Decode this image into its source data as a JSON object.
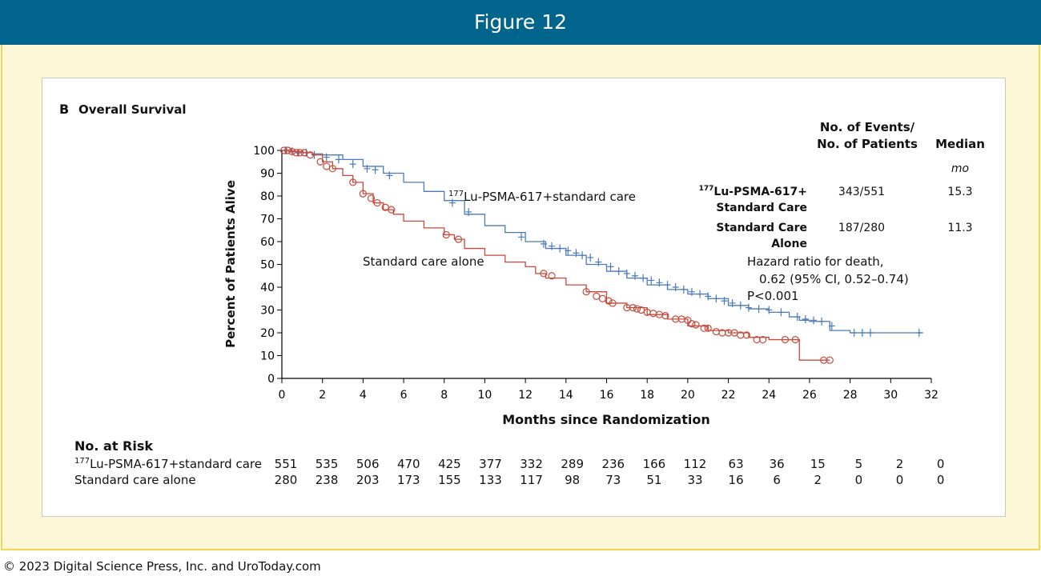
{
  "figure_title": "Figure 12",
  "footer": "© 2023 Digital Science Press, Inc. and UroToday.com",
  "panel": {
    "letter": "B",
    "title": "Overall Survival"
  },
  "events_table": {
    "header_events_line1": "No. of Events/",
    "header_events_line2": "No. of Patients",
    "header_median": "Median",
    "median_unit": "mo",
    "rows": [
      {
        "name_sup": "177",
        "name_line1": "Lu-PSMA-617+",
        "name_line2": "Standard Care",
        "events": "343/551",
        "median": "15.3"
      },
      {
        "name_sup": "",
        "name_line1": "Standard Care",
        "name_line2": "Alone",
        "events": "187/280",
        "median": "11.3"
      }
    ],
    "hr_line1": "Hazard ratio for death,",
    "hr_line2": "0.62 (95% CI, 0.52–0.74)",
    "hr_line3": "P<0.001"
  },
  "at_risk": {
    "title": "No. at Risk",
    "rows": [
      {
        "sup": "177",
        "label": "Lu-PSMA-617+standard care",
        "values": [
          "551",
          "535",
          "506",
          "470",
          "425",
          "377",
          "332",
          "289",
          "236",
          "166",
          "112",
          "63",
          "36",
          "15",
          "5",
          "2",
          "0"
        ]
      },
      {
        "sup": "",
        "label": "Standard care alone",
        "values": [
          "280",
          "238",
          "203",
          "173",
          "155",
          "133",
          "117",
          "98",
          "73",
          "51",
          "33",
          "16",
          "6",
          "2",
          "0",
          "0",
          "0"
        ]
      }
    ]
  },
  "chart_data": {
    "type": "line",
    "title": "Overall Survival",
    "xlabel": "Months since Randomization",
    "ylabel": "Percent of Patients Alive",
    "xlim": [
      0,
      32
    ],
    "ylim": [
      0,
      100
    ],
    "xticks": [
      0,
      2,
      4,
      6,
      8,
      10,
      12,
      14,
      16,
      18,
      20,
      22,
      24,
      26,
      28,
      30,
      32
    ],
    "yticks": [
      0,
      10,
      20,
      30,
      40,
      50,
      60,
      70,
      80,
      90,
      100
    ],
    "series": [
      {
        "name": "177Lu-PSMA-617+standard care",
        "label_sup": "177",
        "label_text": "Lu-PSMA-617+standard care",
        "color": "#4a7ab8",
        "censor": "plus",
        "x": [
          0,
          0.5,
          1,
          1.5,
          2,
          3,
          4,
          5,
          6,
          7,
          8,
          9,
          10,
          11,
          12,
          13,
          14,
          15,
          16,
          17,
          18,
          19,
          20,
          21,
          22,
          23,
          24,
          25,
          25.5,
          26,
          27,
          28,
          29,
          30,
          31,
          31.6
        ],
        "y": [
          100,
          99.5,
          99,
          98.5,
          98,
          96,
          93,
          90,
          86,
          82,
          78,
          72,
          67,
          64,
          60,
          57,
          54,
          50,
          47,
          44,
          41,
          39,
          37,
          35,
          32,
          30.5,
          29,
          27,
          25.5,
          25,
          21,
          20,
          20,
          20,
          20,
          20
        ],
        "censored": {
          "x": [
            0.2,
            0.5,
            0.8,
            1.2,
            1.6,
            2.2,
            2.8,
            3.5,
            4.2,
            4.6,
            5.3,
            8.4,
            9.2,
            11.8,
            12.9,
            13.3,
            13.7,
            14.1,
            14.5,
            14.8,
            15.2,
            15.6,
            16.2,
            16.6,
            17.0,
            17.4,
            17.8,
            18.2,
            18.6,
            19.0,
            19.4,
            19.8,
            20.2,
            20.6,
            21.0,
            21.4,
            21.8,
            22.2,
            22.6,
            23.0,
            23.5,
            24.0,
            24.6,
            25.4,
            25.8,
            26.2,
            26.6,
            27.1,
            28.2,
            28.6,
            29.0,
            31.4
          ],
          "y": [
            100,
            99.5,
            99,
            99,
            98,
            97,
            96,
            94,
            92,
            91.5,
            89,
            77,
            73,
            62,
            59,
            58,
            57,
            56,
            55,
            54,
            53,
            51,
            49,
            47,
            46,
            45,
            44,
            43,
            42,
            41,
            40,
            39,
            38,
            37,
            36,
            35,
            34,
            33,
            32,
            31,
            30.5,
            30,
            29,
            27,
            26,
            25.5,
            25,
            23,
            20,
            20,
            20,
            20
          ]
        }
      },
      {
        "name": "Standard care alone",
        "label_text": "Standard care alone",
        "color": "#c8483a",
        "censor": "circle",
        "x": [
          0,
          0.5,
          1,
          1.5,
          2,
          2.5,
          3,
          3.5,
          4,
          4.5,
          5,
          5.5,
          6,
          7,
          8,
          8.5,
          9,
          10,
          11,
          12,
          12.5,
          13,
          14,
          15,
          16,
          17,
          18,
          19,
          20,
          21,
          22,
          23,
          24,
          25,
          25.3,
          25.5,
          26,
          27
        ],
        "y": [
          100,
          99.5,
          99,
          98,
          95,
          92,
          89,
          86,
          81,
          77,
          74,
          72,
          69,
          66,
          63,
          61,
          57,
          54,
          51,
          49,
          46,
          44,
          41,
          38,
          33,
          31,
          28,
          26,
          23,
          21,
          20,
          18,
          17,
          17,
          17,
          8,
          8,
          8
        ],
        "censored": {
          "x": [
            0.1,
            0.3,
            0.5,
            0.7,
            0.9,
            1.1,
            1.4,
            1.9,
            2.2,
            2.5,
            3.5,
            4.0,
            4.4,
            4.7,
            5.1,
            5.4,
            8.1,
            8.7,
            12.9,
            13.3,
            15.0,
            15.5,
            15.8,
            16.1,
            16.3,
            17.0,
            17.3,
            17.5,
            17.7,
            18.0,
            18.3,
            18.6,
            18.9,
            19.4,
            19.7,
            20.0,
            20.2,
            20.4,
            20.8,
            21.0,
            21.4,
            21.7,
            22.0,
            22.3,
            22.6,
            22.9,
            23.4,
            23.7,
            24.8,
            25.3,
            26.7,
            27.0
          ],
          "y": [
            100,
            100,
            99.5,
            99,
            99,
            99,
            98,
            95,
            93,
            92,
            86,
            81,
            79,
            77,
            75,
            74,
            63,
            61,
            46,
            45,
            38,
            36,
            35,
            34,
            33,
            31,
            31,
            30.5,
            30,
            29,
            28.5,
            28,
            27.5,
            26,
            26,
            25.5,
            24,
            23.5,
            22,
            22,
            20.5,
            20,
            20,
            20,
            19,
            19,
            17,
            17,
            17,
            17,
            8,
            8
          ]
        }
      }
    ]
  }
}
